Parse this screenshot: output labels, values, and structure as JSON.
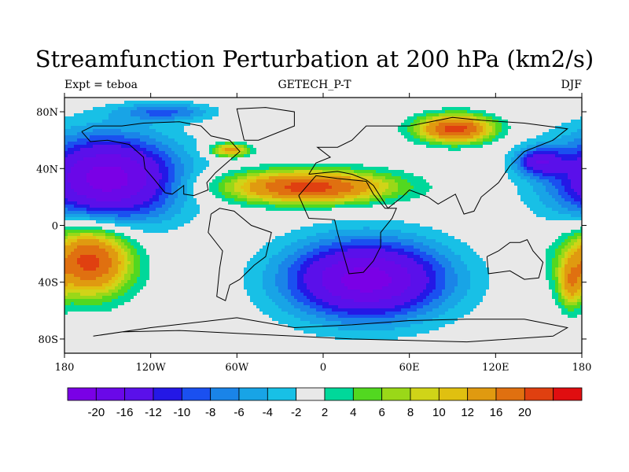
{
  "title": "Streamfunction Perturbation at 200 hPa (km2/s)",
  "left_label": "Expt = teboa",
  "center_label": "GETECH_P-T",
  "right_label": "DJF",
  "map": {
    "projection": "cylindrical-equidistant",
    "lon_range": [
      -180,
      180
    ],
    "lat_range": [
      -90,
      90
    ],
    "lon_ticks": [
      {
        "value": -180,
        "label": "180"
      },
      {
        "value": -120,
        "label": "120W"
      },
      {
        "value": -60,
        "label": "60W"
      },
      {
        "value": 0,
        "label": "0"
      },
      {
        "value": 60,
        "label": "60E"
      },
      {
        "value": 120,
        "label": "120E"
      },
      {
        "value": 180,
        "label": "180"
      }
    ],
    "lat_ticks": [
      {
        "value": 80,
        "label": "80N"
      },
      {
        "value": 40,
        "label": "40N"
      },
      {
        "value": 0,
        "label": "0"
      },
      {
        "value": -40,
        "label": "40S"
      },
      {
        "value": -80,
        "label": "80S"
      }
    ],
    "features": [
      {
        "name": "equatorial-positive-anomaly",
        "lon": -10,
        "lat": 27,
        "rlon": 70,
        "rlat": 14,
        "value": 22
      },
      {
        "name": "siberian-positive-anomaly",
        "lon": 92,
        "lat": 68,
        "rlon": 32,
        "rlat": 12,
        "value": 22
      },
      {
        "name": "north-pacific-positive-anomaly",
        "lon": -65,
        "lat": 53,
        "rlon": 17,
        "rlat": 6,
        "value": 14
      },
      {
        "name": "western-pacific-positive-anomaly",
        "lon": -163,
        "lat": -25,
        "rlon": 36,
        "rlat": 30,
        "value": 22
      },
      {
        "name": "far-east-positive-anomaly",
        "lon": 172,
        "lat": -42,
        "rlon": 10,
        "rlat": 20,
        "value": 10
      },
      {
        "name": "north-hemisphere-negative-anomaly",
        "lon": -150,
        "lat": 33,
        "rlon": 62,
        "rlat": 38,
        "value": -22
      },
      {
        "name": "south-negative-anomaly",
        "lon": 30,
        "lat": -38,
        "rlon": 70,
        "rlat": 35,
        "value": -22
      },
      {
        "name": "north-pacific-small-negative",
        "lon": 150,
        "lat": 45,
        "rlon": 20,
        "rlat": 12,
        "value": -12
      },
      {
        "name": "arctic-negative-band",
        "lon": -110,
        "lat": 80,
        "rlon": 40,
        "rlat": 8,
        "value": -8
      }
    ]
  },
  "colorbar": {
    "colors": [
      "#7a00e6",
      "#6a08e8",
      "#5a10ea",
      "#2418e6",
      "#1a50f0",
      "#1a84e8",
      "#18a4e6",
      "#18c0e6",
      "#e8e8e8",
      "#00d89a",
      "#52d820",
      "#9ad818",
      "#d0d418",
      "#e0c010",
      "#e09a10",
      "#e07010",
      "#e04010",
      "#e00e10"
    ],
    "labels": [
      "-20",
      "-16",
      "-12",
      "-10",
      "-8",
      "-6",
      "-4",
      "-2",
      "2",
      "4",
      "6",
      "8",
      "10",
      "12",
      "16",
      "20"
    ],
    "levels": [
      -20,
      -16,
      -12,
      -10,
      -8,
      -6,
      -4,
      -2,
      2,
      4,
      6,
      8,
      10,
      12,
      16,
      20
    ]
  }
}
